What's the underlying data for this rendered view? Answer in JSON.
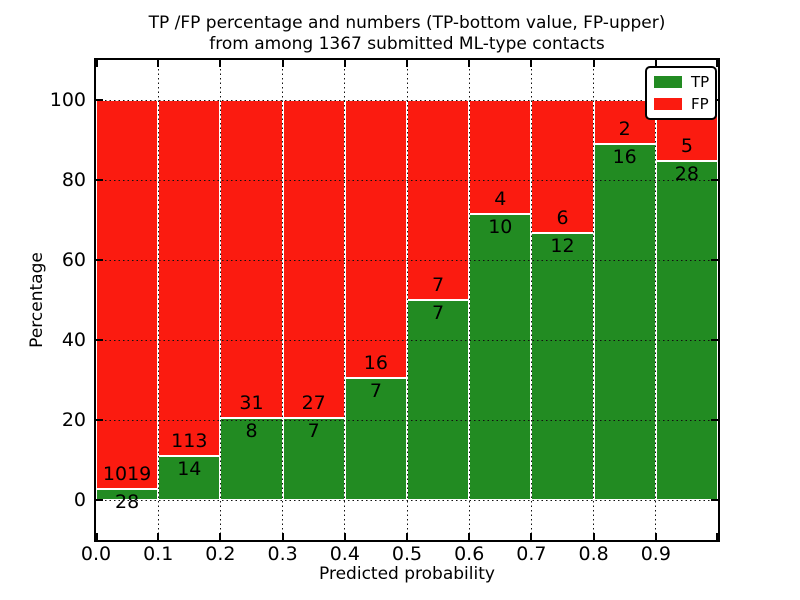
{
  "title": {
    "line1": "TP /FP percentage and numbers (TP-bottom value, FP-upper)",
    "line2": "from among 1367 submitted ML-type contacts"
  },
  "axes": {
    "xlabel": "Predicted probability",
    "ylabel": "Percentage"
  },
  "legend": [
    {
      "label": "TP",
      "color": "#228b22"
    },
    {
      "label": "FP",
      "color": "#fb1b10"
    }
  ],
  "colors": {
    "tp": "#228b22",
    "fp": "#fb1b10",
    "frame": "#000000",
    "grid": "#111111",
    "bar_edge": "#ffffff"
  },
  "chart_data": {
    "type": "bar",
    "stacked": true,
    "normalized": "each bin scaled to 100%",
    "title": "TP /FP percentage and numbers (TP-bottom value, FP-upper) from among 1367 submitted ML-type contacts",
    "xlabel": "Predicted probability",
    "ylabel": "Percentage",
    "total_contacts": 1367,
    "bins": [
      "0.0-0.1",
      "0.1-0.2",
      "0.2-0.3",
      "0.3-0.4",
      "0.4-0.5",
      "0.5-0.6",
      "0.6-0.7",
      "0.7-0.8",
      "0.8-0.9",
      "0.9-1.0"
    ],
    "series": [
      {
        "name": "TP",
        "color": "#228b22",
        "counts": [
          28,
          14,
          8,
          7,
          7,
          7,
          10,
          12,
          16,
          28
        ]
      },
      {
        "name": "FP",
        "color": "#fb1b10",
        "counts": [
          1019,
          113,
          31,
          27,
          16,
          7,
          4,
          6,
          2,
          5
        ]
      }
    ],
    "tp_percent_of_bin": [
      2.67,
      11.02,
      20.51,
      20.59,
      30.43,
      50.0,
      71.43,
      66.67,
      88.89,
      84.85
    ],
    "xlim": [
      0.0,
      1.0
    ],
    "ylim": [
      -10,
      110
    ],
    "yticks": [
      0,
      20,
      40,
      60,
      80,
      100
    ],
    "xtick_labels": [
      "0.0",
      "0.1",
      "0.2",
      "0.3",
      "0.4",
      "0.5",
      "0.6",
      "0.7",
      "0.8",
      "0.9"
    ],
    "grid": "dotted black, both axes, drawn above bars",
    "legend_position": "upper right"
  }
}
